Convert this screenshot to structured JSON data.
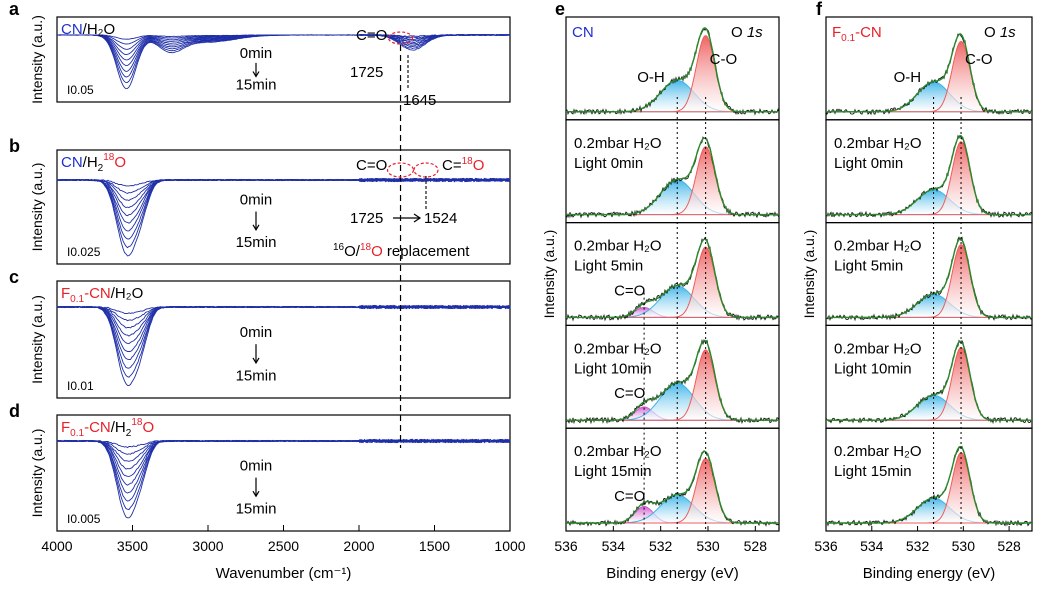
{
  "colors": {
    "spectrum_blue": "#1f2fa8",
    "label_blue": "#1f2fd0",
    "label_red": "#e8202a",
    "oh_fill": "#3db4e8",
    "co_fill": "#ee5c5c",
    "cdo_fill": "#d05ad0",
    "envelope": "#2a8a2a",
    "raw": "#111111"
  },
  "chart_data": [
    {
      "type": "line",
      "panel": "a",
      "label_prefix": "CN",
      "label_suffix": "/H₂O",
      "xlim": [
        4000,
        1000
      ],
      "scale_bar": "0.05",
      "time_start": "0min",
      "time_end": "15min",
      "annotations": [
        "C=O",
        "1725",
        "1645"
      ],
      "peaks": [
        {
          "center": 3540,
          "depth": 0.9
        },
        {
          "center": 3250,
          "depth": 0.25
        },
        {
          "center": 1645,
          "depth": 0.25
        }
      ],
      "curves": 10
    },
    {
      "type": "line",
      "panel": "b",
      "label_prefix": "CN",
      "label_mid": "/H",
      "label_sub": "2",
      "label_sup": "18",
      "label_end": "O",
      "xlim": [
        4000,
        1000
      ],
      "scale_bar": "0.025",
      "time_start": "0min",
      "time_end": "15min",
      "annotations": [
        "C=O",
        "C=",
        "18",
        "O",
        "1725",
        "1524",
        "16",
        "O/",
        "18",
        "O",
        " replacement"
      ],
      "peaks": [
        {
          "center": 3540,
          "depth": 0.9
        },
        {
          "center": 3440,
          "depth": 0.3
        }
      ],
      "curves": 10
    },
    {
      "type": "line",
      "panel": "c",
      "label_prefix": "F",
      "label_sub": "0.1",
      "label_mid": "-CN",
      "label_suffix": "/H₂O",
      "xlim": [
        4000,
        1000
      ],
      "scale_bar": "0.01",
      "time_start": "0min",
      "time_end": "15min",
      "peaks": [
        {
          "center": 3540,
          "depth": 0.9
        },
        {
          "center": 3440,
          "depth": 0.35
        }
      ],
      "curves": 10
    },
    {
      "type": "line",
      "panel": "d",
      "label_prefix": "F",
      "label_sub": "0.1",
      "label_mid": "-CN",
      "label_h": "/H",
      "label_h_sub": "2",
      "label_sup": "18",
      "label_end": "O",
      "xlim": [
        4000,
        1000
      ],
      "xlabel": "Wavenumber (cm⁻¹)",
      "xticks": [
        4000,
        3500,
        3000,
        2500,
        2000,
        1500,
        1000
      ],
      "scale_bar": "0.005",
      "time_start": "0min",
      "time_end": "15min",
      "peaks": [
        {
          "center": 3540,
          "depth": 0.9
        },
        {
          "center": 3440,
          "depth": 0.3
        }
      ],
      "curves": 10
    }
  ],
  "xps_e": {
    "panel": "e",
    "title": "CN",
    "orbital": "O ",
    "orbital_italic": "1s",
    "xlim": [
      536,
      527
    ],
    "xticks": [
      536,
      534,
      532,
      530,
      528
    ],
    "xlabel": "Binding energy (eV)",
    "ylabel": "Intensity (a.u.)",
    "oh_label": "O-H",
    "co_label": "C-O",
    "cdo_label": "C=O",
    "subplots": [
      {
        "line1": "",
        "line2": "",
        "oh_amp": 0.38,
        "co_amp": 0.92,
        "cdo_amp": 0
      },
      {
        "line1": "0.2mbar H₂O",
        "line2": "Light 0min",
        "oh_amp": 0.42,
        "co_amp": 0.82,
        "cdo_amp": 0
      },
      {
        "line1": "0.2mbar H₂O",
        "line2": "Light 5min",
        "oh_amp": 0.38,
        "co_amp": 0.85,
        "cdo_amp": 0.12
      },
      {
        "line1": "0.2mbar H₂O",
        "line2": "Light 10min",
        "oh_amp": 0.45,
        "co_amp": 0.85,
        "cdo_amp": 0.16
      },
      {
        "line1": "0.2mbar H₂O",
        "line2": "Light 15min",
        "oh_amp": 0.34,
        "co_amp": 0.78,
        "cdo_amp": 0.2
      }
    ]
  },
  "xps_f": {
    "panel": "f",
    "title_prefix": "F",
    "title_sub": "0.1",
    "title_end": "-CN",
    "orbital": "O ",
    "orbital_italic": "1s",
    "xlim": [
      536,
      527
    ],
    "xticks": [
      536,
      534,
      532,
      530,
      528
    ],
    "xlabel": "Binding energy (eV)",
    "ylabel": "Intensity (a.u.)",
    "oh_label": "O-H",
    "co_label": "C-O",
    "subplots": [
      {
        "line1": "",
        "line2": "",
        "oh_amp": 0.36,
        "co_amp": 0.85
      },
      {
        "line1": "0.2mbar H₂O",
        "line2": "Light 0min",
        "oh_amp": 0.3,
        "co_amp": 0.88
      },
      {
        "line1": "0.2mbar H₂O",
        "line2": "Light 5min",
        "oh_amp": 0.28,
        "co_amp": 0.88
      },
      {
        "line1": "0.2mbar H₂O",
        "line2": "Light 10min",
        "oh_amp": 0.3,
        "co_amp": 0.88
      },
      {
        "line1": "0.2mbar H₂O",
        "line2": "Light 15min",
        "oh_amp": 0.3,
        "co_amp": 0.85
      }
    ]
  },
  "ftir_ylabel": "Intensity (a.u.)",
  "dashed_positions": {
    "ftir_vline": 1725,
    "xps_oh": 531.3,
    "xps_co": 530.1,
    "xps_cdo": 532.7
  }
}
